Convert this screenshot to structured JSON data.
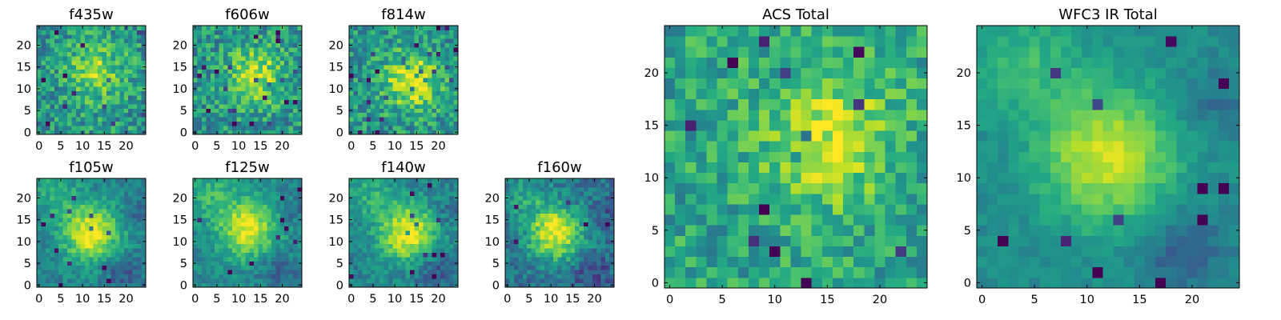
{
  "chart_data": {
    "type": "heatmap",
    "colormap": "viridis",
    "grid": false,
    "panels": [
      {
        "id": "f435w",
        "title": "f435w",
        "kind": "acs",
        "size": 25,
        "peak": [
          13,
          14
        ],
        "amp": 0.35,
        "bg": 0.52,
        "noise": 0.42,
        "xticks": [
          0,
          5,
          10,
          15,
          20
        ],
        "yticks": [
          0,
          5,
          10,
          15,
          20
        ]
      },
      {
        "id": "f606w",
        "title": "f606w",
        "kind": "acs",
        "size": 25,
        "peak": [
          14,
          13
        ],
        "amp": 0.4,
        "bg": 0.52,
        "noise": 0.42,
        "xticks": [
          0,
          5,
          10,
          15,
          20
        ],
        "yticks": [
          0,
          5,
          10,
          15,
          20
        ]
      },
      {
        "id": "f814w",
        "title": "f814w",
        "kind": "acs",
        "size": 25,
        "peak": [
          14,
          12
        ],
        "amp": 0.45,
        "bg": 0.52,
        "noise": 0.4,
        "xticks": [
          0,
          5,
          10,
          15,
          20
        ],
        "yticks": [
          0,
          5,
          10,
          15,
          20
        ]
      },
      {
        "id": "f105w",
        "title": "f105w",
        "kind": "ir",
        "size": 25,
        "peak": [
          12,
          12
        ],
        "amp": 0.55,
        "bg": 0.45,
        "noise": 0.22,
        "xticks": [
          0,
          5,
          10,
          15,
          20
        ],
        "yticks": [
          0,
          5,
          10,
          15,
          20
        ]
      },
      {
        "id": "f125w",
        "title": "f125w",
        "kind": "ir",
        "size": 25,
        "peak": [
          12,
          13
        ],
        "amp": 0.5,
        "bg": 0.47,
        "noise": 0.22,
        "xticks": [
          0,
          5,
          10,
          15,
          20
        ],
        "yticks": [
          0,
          5,
          10,
          15,
          20
        ]
      },
      {
        "id": "f140w",
        "title": "f140w",
        "kind": "ir",
        "size": 25,
        "peak": [
          13,
          12
        ],
        "amp": 0.55,
        "bg": 0.45,
        "noise": 0.24,
        "xticks": [
          0,
          5,
          10,
          15,
          20
        ],
        "yticks": [
          0,
          5,
          10,
          15,
          20
        ]
      },
      {
        "id": "f160w",
        "title": "f160w",
        "kind": "ir",
        "size": 25,
        "peak": [
          11,
          12
        ],
        "amp": 0.6,
        "bg": 0.38,
        "noise": 0.28,
        "xticks": [
          0,
          5,
          10,
          15,
          20
        ],
        "yticks": [
          0,
          5,
          10,
          15,
          20
        ]
      },
      {
        "id": "acs_total",
        "title": "ACS Total",
        "kind": "acs",
        "size": 25,
        "peak": [
          15,
          14
        ],
        "amp": 0.35,
        "bg": 0.58,
        "noise": 0.36,
        "xticks": [
          0,
          5,
          10,
          15,
          20
        ],
        "yticks": [
          0,
          5,
          10,
          15,
          20
        ]
      },
      {
        "id": "wfc3_ir_total",
        "title": "WFC3 IR Total",
        "kind": "ir",
        "size": 25,
        "peak": [
          12,
          12
        ],
        "amp": 0.45,
        "bg": 0.48,
        "noise": 0.12,
        "xticks": [
          0,
          5,
          10,
          15,
          20
        ],
        "yticks": [
          0,
          5,
          10,
          15,
          20
        ]
      }
    ]
  }
}
